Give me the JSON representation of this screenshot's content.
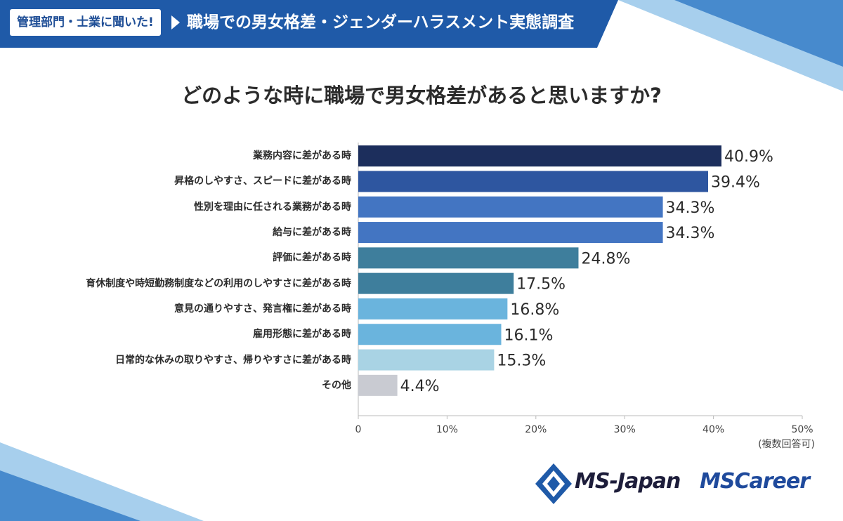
{
  "header": {
    "badge": "管理部門・士業に聞いた!",
    "title": "職場での男女格差・ジェンダーハラスメント実態調査"
  },
  "question": "どのような時に職場で男女格差があると思いますか?",
  "note": "(複数回答可)",
  "logos": {
    "ms_japan": "MS-Japan",
    "ms_career": "MSCareer"
  },
  "colors": {
    "header": "#1f5aa8",
    "bars": [
      "#1c2e5c",
      "#2e56a0",
      "#4375c2",
      "#4375c2",
      "#3e7e9c",
      "#3e7e9c",
      "#6ab4dd",
      "#6ab4dd",
      "#a9d3e4",
      "#c9cbd2"
    ]
  },
  "chart_data": {
    "type": "bar",
    "orientation": "horizontal",
    "title": "どのような時に職場で男女格差があると思いますか?",
    "categories": [
      "業務内容に差がある時",
      "昇格のしやすさ、スピードに差がある時",
      "性別を理由に任される業務がある時",
      "給与に差がある時",
      "評価に差がある時",
      "育休制度や時短勤務制度などの利用のしやすさに差がある時",
      "意見の通りやすさ、発言権に差がある時",
      "雇用形態に差がある時",
      "日常的な休みの取りやすさ、帰りやすさに差がある時",
      "その他"
    ],
    "values": [
      40.9,
      39.4,
      34.3,
      34.3,
      24.8,
      17.5,
      16.8,
      16.1,
      15.3,
      4.4
    ],
    "value_labels": [
      "40.9%",
      "39.4%",
      "34.3%",
      "34.3%",
      "24.8%",
      "17.5%",
      "16.8%",
      "16.1%",
      "15.3%",
      "4.4%"
    ],
    "xlim": [
      0,
      50
    ],
    "xticks": [
      "0",
      "10%",
      "20%",
      "30%",
      "40%",
      "50%"
    ],
    "xlabel": "",
    "ylabel": "",
    "grid": false
  }
}
